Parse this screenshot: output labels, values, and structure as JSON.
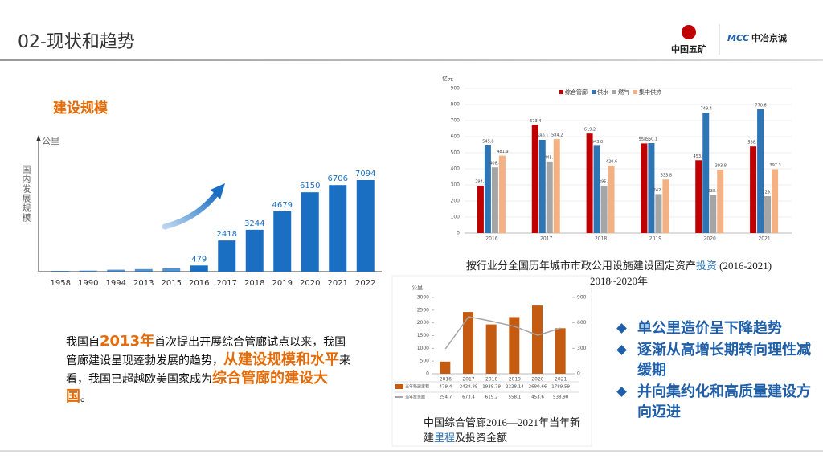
{
  "header": {
    "title": "02-现状和趋势",
    "logo_left": "中国五矿",
    "logo_right_mark": "MCC",
    "logo_right": "中冶京诚"
  },
  "section_title": "建设规模",
  "paragraph": [
    {
      "text": "我国自"
    },
    {
      "text": "2013年",
      "emphasis": true
    },
    {
      "text": "首次提出开展综合管廊试点以来，我国管廊建设呈现蓬勃发展的趋势，"
    },
    {
      "text": "从建设规模和水平",
      "emphasis": true
    },
    {
      "text": "来看，我国已超越欧美国家成为"
    },
    {
      "text": "综合管廊的建设大国",
      "emphasis": true
    },
    {
      "text": "。"
    }
  ],
  "bullets": [
    "单公里造价呈下降趋势",
    "逐渐从高增长期转向理性减缓期",
    "并向集约化和高质量建设方向迈进"
  ],
  "chart_data": [
    {
      "type": "bar",
      "ylabel": "国内发展规模",
      "y_unit": "公里",
      "color": "#1a6fc2",
      "categories": [
        "1958",
        "1990",
        "1994",
        "2013",
        "2015",
        "2016",
        "2017",
        "2018",
        "2019",
        "2020",
        "2021",
        "2022"
      ],
      "values": [
        60,
        80,
        150,
        200,
        250,
        479,
        2418,
        3244,
        4679,
        6150,
        6706,
        7094
      ],
      "value_labels": [
        null,
        null,
        null,
        null,
        null,
        "479",
        "2418",
        "3244",
        "4679",
        "6150",
        "6706",
        "7094"
      ]
    },
    {
      "type": "bar",
      "y_unit": "亿元",
      "caption": [
        {
          "text": "按行业分全国历年城市市政公用设施建设固定资产"
        },
        {
          "text": "投资",
          "highlight": true
        },
        {
          "text": " (2016-2021)"
        }
      ],
      "caption_line2": "2018~2020年",
      "categories": [
        "2016",
        "2017",
        "2018",
        "2019",
        "2020",
        "2021"
      ],
      "ylim": [
        0,
        900
      ],
      "yticks": [
        0,
        100,
        200,
        300,
        400,
        500,
        600,
        700,
        800,
        900
      ],
      "grid": true,
      "series": [
        {
          "name": "综合管廊",
          "color": "#c00000",
          "values": [
            294.7,
            673.4,
            619.2,
            558.1,
            453.6,
            538.9
          ]
        },
        {
          "name": "供水",
          "color": "#2e75b6",
          "values": [
            545.8,
            580.1,
            543.0,
            560.1,
            749.4,
            770.6
          ],
          "value_labels": [
            "545.8",
            "580.1",
            "543.0",
            "560.1",
            "749.4",
            "770.6"
          ]
        },
        {
          "name": "燃气",
          "color": "#a5a5a5",
          "values": [
            408.8,
            445.7,
            295.1,
            242.7,
            238.6,
            229.9
          ]
        },
        {
          "name": "集中供热",
          "color": "#f4b183",
          "values": [
            481.9,
            584.2,
            420.6,
            333.8,
            393.8,
            397.3
          ]
        }
      ]
    },
    {
      "type": "combo",
      "y_unit": "公里",
      "caption": [
        {
          "text": "中国综合管廊2016—2021年当年"
        },
        {
          "text": "新建"
        },
        {
          "text": "里程",
          "highlight": true
        },
        {
          "text": "及投资金额"
        }
      ],
      "categories": [
        "2016",
        "2017",
        "2018",
        "2019",
        "2020",
        "2021"
      ],
      "ylim": [
        0,
        3000
      ],
      "yticks": [
        0,
        500,
        1000,
        1500,
        2000,
        2500,
        3000
      ],
      "y2lim": [
        0,
        900
      ],
      "y2ticks": [
        0,
        300,
        600,
        900
      ],
      "series": [
        {
          "name": "当年新建里程",
          "color": "#c55a11",
          "values": [
            479.4,
            2428.89,
            1938.79,
            2228.14,
            2680.66,
            1789.59
          ]
        },
        {
          "name": "当年投资额",
          "color": "#a5a5a5",
          "axis": "y2",
          "values": [
            294.7,
            673.4,
            619.2,
            558.1,
            453.6,
            538.9
          ],
          "value_labels": [
            "294.7",
            "673.4",
            "619.2",
            "558.1",
            "453.6",
            "538.90"
          ]
        }
      ]
    }
  ]
}
